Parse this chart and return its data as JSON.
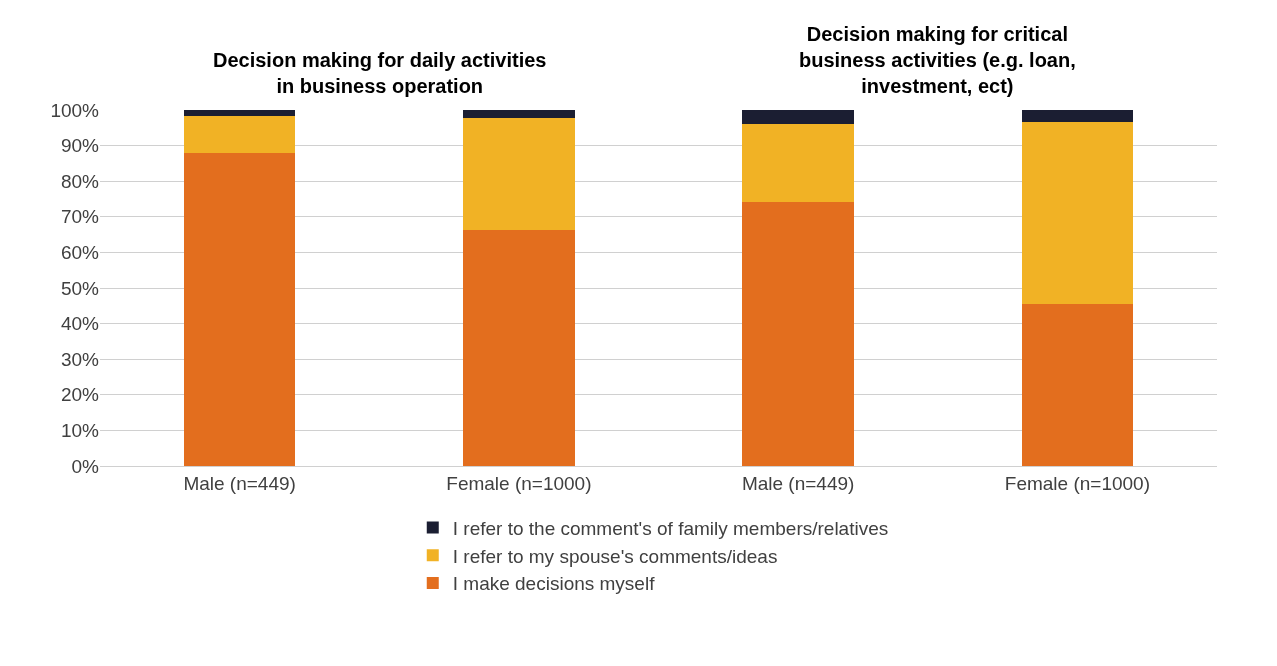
{
  "chart_data": {
    "type": "bar",
    "stacked": true,
    "annotations": [
      "Decision making for daily activities in business operation",
      "Decision making for critical business activities (e.g. loan, investment, ect)"
    ],
    "categories": [
      "Male (n=449)",
      "Female (n=1000)",
      "Male (n=449)",
      "Female (n=1000)"
    ],
    "series": [
      {
        "name": "I make decisions myself",
        "color": "#e36e1e",
        "values": [
          88.0,
          66.4,
          74.2,
          45.5
        ]
      },
      {
        "name": "I refer to my spouse's comments/ideas",
        "color": "#f1b225",
        "values": [
          10.3,
          31.4,
          22.0,
          51.0
        ]
      },
      {
        "name": "I refer to the comment's of family members/relatives",
        "color": "#1b1e32",
        "values": [
          1.7,
          2.2,
          3.8,
          3.5
        ]
      }
    ],
    "ylim": [
      0,
      100
    ],
    "yticks": [
      {
        "value": 0,
        "label": "0%"
      },
      {
        "value": 10,
        "label": "10%"
      },
      {
        "value": 20,
        "label": "20%"
      },
      {
        "value": 30,
        "label": "30%"
      },
      {
        "value": 40,
        "label": "40%"
      },
      {
        "value": 50,
        "label": "50%"
      },
      {
        "value": 60,
        "label": "60%"
      },
      {
        "value": 70,
        "label": "70%"
      },
      {
        "value": 80,
        "label": "80%"
      },
      {
        "value": 90,
        "label": "90%"
      },
      {
        "value": 100,
        "label": "100%"
      }
    ],
    "grid": "y",
    "legend": "bottom"
  }
}
